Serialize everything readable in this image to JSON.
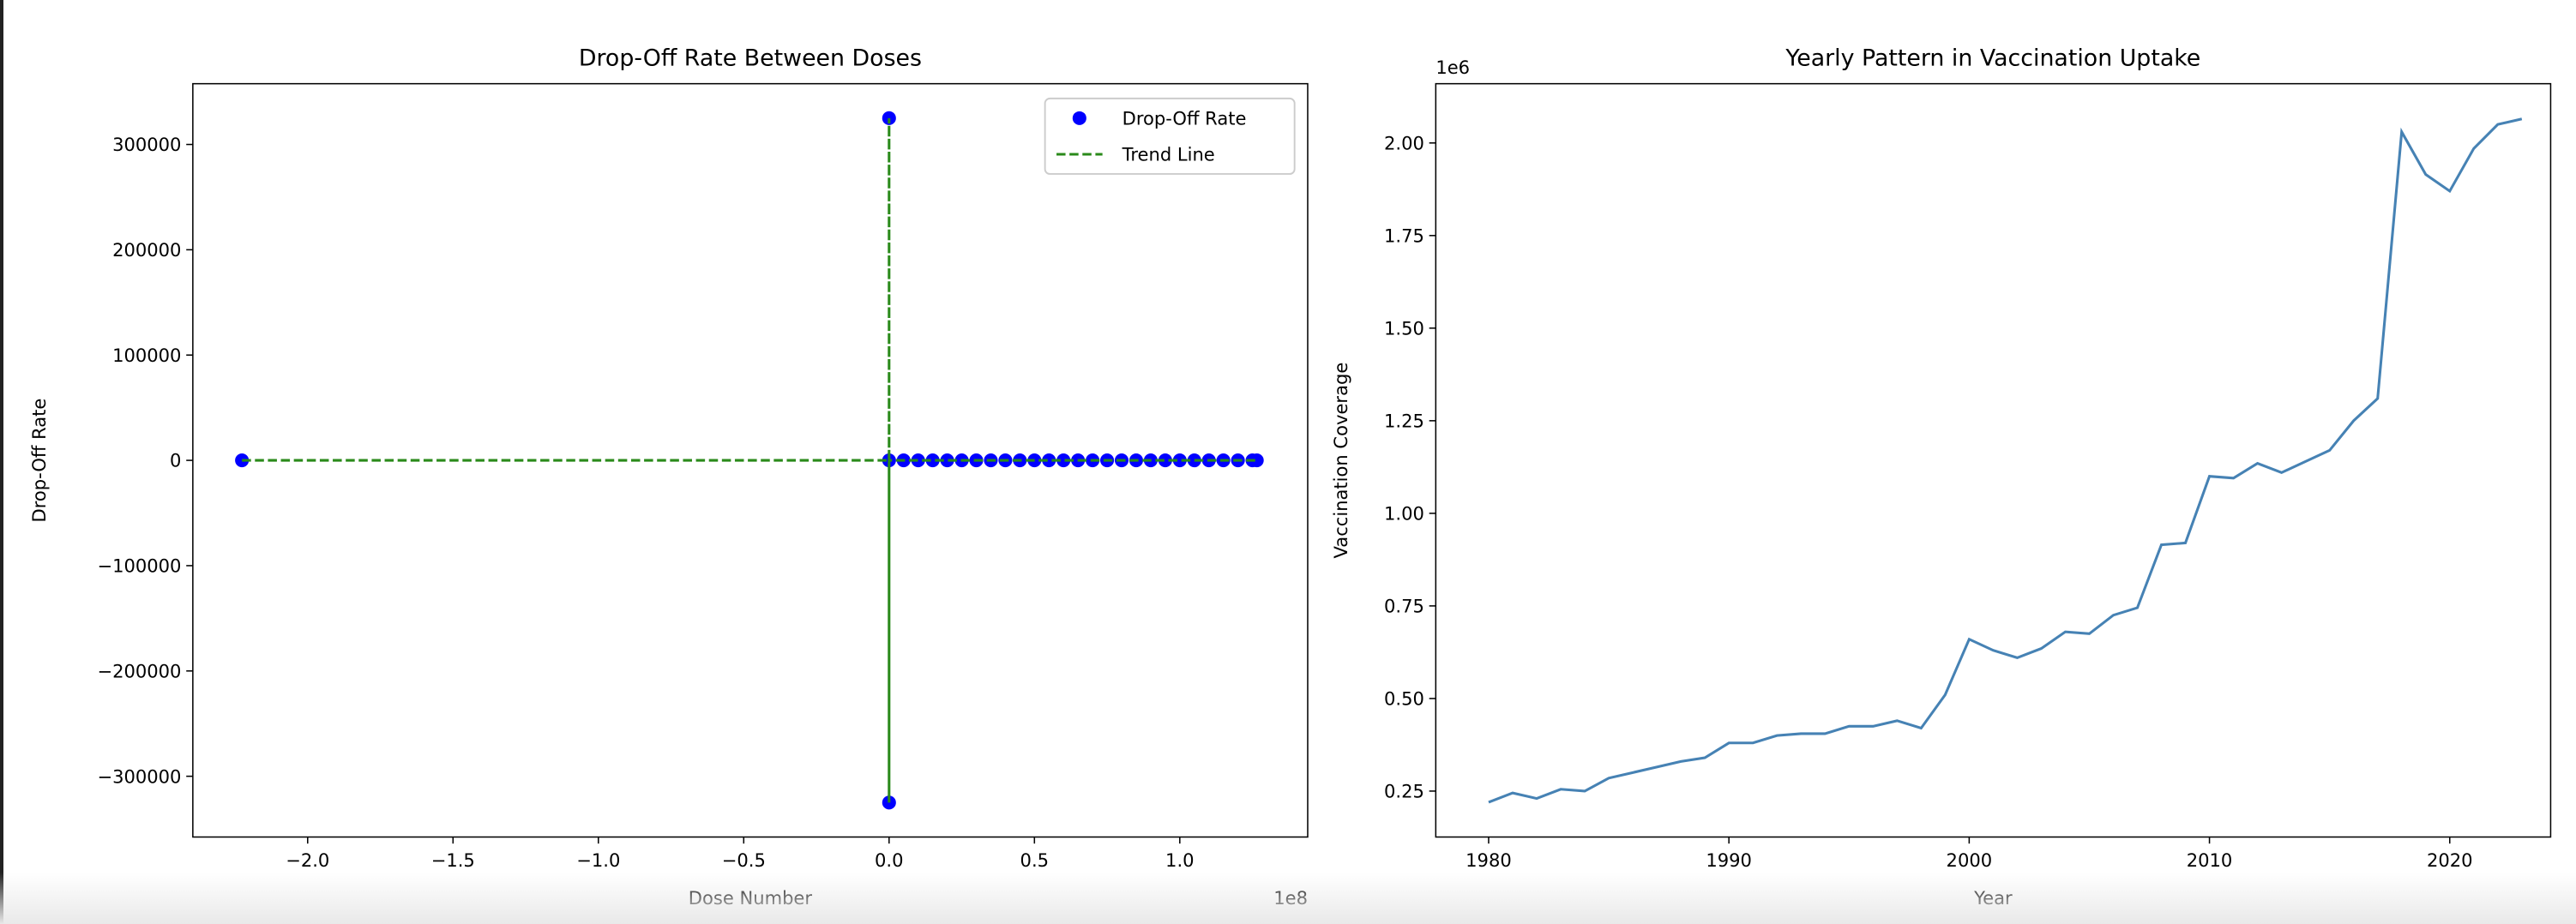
{
  "chart_data": [
    {
      "type": "scatter",
      "title": "Drop-Off Rate Between Doses",
      "x_label": "Dose Number",
      "y_label": "Drop-Off Rate",
      "x_offset_label": "1e8",
      "xlim": [
        -2.395,
        1.44
      ],
      "ylim": [
        -357700,
        357700
      ],
      "xticks": [
        {
          "value": -2,
          "label": "−2.0"
        },
        {
          "value": -1.5,
          "label": "−1.5"
        },
        {
          "value": -1,
          "label": "−1.0"
        },
        {
          "value": -0.5,
          "label": "−0.5"
        },
        {
          "value": 0,
          "label": "0.0"
        },
        0.5,
        {
          "value": 1,
          "label": "1.0"
        }
      ],
      "yticks": [
        {
          "value": -300000,
          "label": "−300000"
        },
        {
          "value": -200000,
          "label": "−200000"
        },
        {
          "value": -100000,
          "label": "−100000"
        },
        0,
        100000,
        200000,
        300000
      ],
      "legend": "upper right",
      "series": [
        {
          "name": "Drop-Off Rate",
          "style": "markers",
          "color": "#0000ff",
          "x": [
            -2.226,
            0,
            0,
            0,
            0.05,
            0.1,
            0.15,
            0.2,
            0.25,
            0.3,
            0.35,
            0.4,
            0.45,
            0.5,
            0.55,
            0.6,
            0.65,
            0.7,
            0.75,
            0.8,
            0.85,
            0.9,
            0.95,
            1.0,
            1.05,
            1.1,
            1.15,
            1.2,
            1.25,
            1.265
          ],
          "values": [
            0,
            325000,
            -325000,
            0,
            0,
            0,
            0,
            0,
            0,
            0,
            0,
            0,
            0,
            0,
            0,
            0,
            0,
            0,
            0,
            0,
            0,
            0,
            0,
            0,
            0,
            0,
            0,
            0,
            0,
            0
          ]
        },
        {
          "name": "Trend Line",
          "style": "dashed-line",
          "color": "#2a8a1a",
          "x": [
            -2.226,
            0,
            0,
            0,
            0,
            1.265
          ],
          "values": [
            0,
            0,
            325000,
            -325000,
            0,
            0
          ]
        }
      ]
    },
    {
      "type": "line",
      "title": "Yearly Pattern in Vaccination Uptake",
      "x_label": "Year",
      "y_label": "Vaccination Coverage",
      "y_offset_label": "1e6",
      "xlim": [
        1977.8,
        2024.2
      ],
      "ylim": [
        0.126,
        2.16
      ],
      "xticks": [
        1980,
        1990,
        2000,
        2010,
        2020
      ],
      "yticks": [
        0.25,
        {
          "value": 0.5,
          "label": "0.50"
        },
        0.75,
        {
          "value": 1,
          "label": "1.00"
        },
        1.25,
        {
          "value": 1.5,
          "label": "1.50"
        },
        1.75,
        {
          "value": 2,
          "label": "2.00"
        }
      ],
      "x": [
        1980,
        1981,
        1982,
        1983,
        1984,
        1985,
        1986,
        1987,
        1988,
        1989,
        1990,
        1991,
        1992,
        1993,
        1994,
        1995,
        1996,
        1997,
        1998,
        1999,
        2000,
        2001,
        2002,
        2003,
        2004,
        2005,
        2006,
        2007,
        2008,
        2009,
        2010,
        2011,
        2012,
        2013,
        2014,
        2015,
        2016,
        2017,
        2018,
        2019,
        2020,
        2021,
        2022,
        2023
      ],
      "series": [
        {
          "style": "line",
          "color": "#4682b4",
          "values": [
            0.22,
            0.245,
            0.23,
            0.255,
            0.25,
            0.285,
            0.3,
            0.315,
            0.33,
            0.34,
            0.38,
            0.38,
            0.4,
            0.405,
            0.405,
            0.425,
            0.425,
            0.44,
            0.42,
            0.51,
            0.66,
            0.63,
            0.61,
            0.635,
            0.68,
            0.675,
            0.725,
            0.745,
            0.915,
            0.92,
            1.1,
            1.095,
            1.135,
            1.11,
            1.14,
            1.17,
            1.25,
            1.31,
            2.03,
            1.915,
            1.87,
            1.985,
            2.05,
            2.065
          ]
        }
      ]
    }
  ]
}
